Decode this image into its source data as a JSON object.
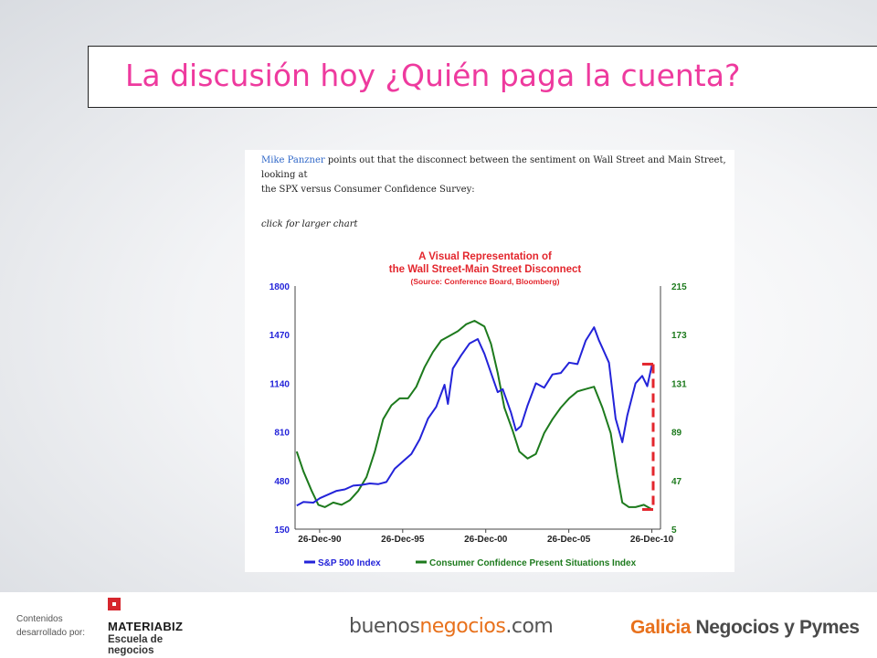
{
  "slide": {
    "title": "La discusión hoy ¿Quién paga la cuenta?"
  },
  "article": {
    "author": "Mike Panzner",
    "intro_rest_1": " points out that the disconnect between the sentiment on Wall Street and Main Street, looking at",
    "intro_line_2": "the SPX versus Consumer Confidence Survey:",
    "link_text": "click for larger chart"
  },
  "chart_data": {
    "type": "line",
    "title_line_1": "A Visual Representation of",
    "title_line_2": "the Wall Street-Main Street Disconnect",
    "subtitle": "(Source: Conference Board, Bloomberg)",
    "x_ticks": [
      "26-Dec-90",
      "26-Dec-95",
      "26-Dec-00",
      "26-Dec-05",
      "26-Dec-10"
    ],
    "x_tick_years": [
      1990.98,
      1995.98,
      2000.98,
      2005.98,
      2010.98
    ],
    "xlim": [
      1989.5,
      2011.5
    ],
    "y_left_ticks": [
      "1800",
      "1470",
      "1140",
      "810",
      "480",
      "150"
    ],
    "ylim_left": [
      150,
      1800
    ],
    "y_right_ticks": [
      "215",
      "173",
      "131",
      "89",
      "47",
      "5"
    ],
    "ylim_right": [
      5,
      215
    ],
    "grid": false,
    "legend_position": "bottom",
    "series": [
      {
        "name": "S&P 500 Index",
        "axis": "left",
        "color": "#2323d9",
        "x": [
          1989.6,
          1990.0,
          1990.6,
          1991.0,
          1991.5,
          1992.0,
          1992.5,
          1993.0,
          1993.5,
          1994.0,
          1994.5,
          1995.0,
          1995.5,
          1996.0,
          1996.5,
          1997.0,
          1997.5,
          1998.0,
          1998.5,
          1998.7,
          1999.0,
          1999.5,
          2000.0,
          2000.5,
          2000.9,
          2001.3,
          2001.7,
          2002.0,
          2002.5,
          2002.8,
          2003.1,
          2003.5,
          2004.0,
          2004.5,
          2005.0,
          2005.5,
          2006.0,
          2006.5,
          2007.0,
          2007.5,
          2007.8,
          2008.0,
          2008.4,
          2008.8,
          2009.2,
          2009.5,
          2010.0,
          2010.4,
          2010.7,
          2011.0
        ],
        "y": [
          310,
          335,
          330,
          360,
          385,
          410,
          420,
          445,
          450,
          460,
          455,
          470,
          560,
          610,
          660,
          760,
          900,
          980,
          1130,
          1000,
          1240,
          1330,
          1410,
          1440,
          1340,
          1210,
          1080,
          1100,
          940,
          820,
          850,
          990,
          1140,
          1110,
          1200,
          1210,
          1280,
          1270,
          1430,
          1520,
          1430,
          1380,
          1280,
          900,
          740,
          920,
          1140,
          1190,
          1120,
          1270
        ]
      },
      {
        "name": "Consumer Confidence Present Situations Index",
        "axis": "right",
        "color": "#1d7a1d",
        "x": [
          1989.6,
          1990.0,
          1990.5,
          1990.9,
          1991.3,
          1991.8,
          1992.3,
          1992.8,
          1993.3,
          1993.8,
          1994.3,
          1994.8,
          1995.3,
          1995.8,
          1996.3,
          1996.8,
          1997.3,
          1997.8,
          1998.3,
          1998.8,
          1999.3,
          1999.8,
          2000.3,
          2000.9,
          2001.3,
          2001.7,
          2002.1,
          2002.6,
          2003.0,
          2003.5,
          2004.0,
          2004.5,
          2005.0,
          2005.5,
          2006.0,
          2006.5,
          2007.0,
          2007.5,
          2008.0,
          2008.5,
          2008.9,
          2009.2,
          2009.6,
          2010.0,
          2010.5,
          2011.0
        ],
        "y": [
          72,
          55,
          38,
          26,
          24,
          28,
          26,
          30,
          38,
          50,
          72,
          100,
          112,
          118,
          118,
          128,
          145,
          158,
          168,
          172,
          176,
          182,
          185,
          180,
          165,
          140,
          110,
          90,
          72,
          66,
          70,
          88,
          100,
          110,
          118,
          124,
          126,
          128,
          110,
          88,
          52,
          28,
          24,
          24,
          26,
          22
        ]
      }
    ],
    "gap_marker_color": "#e3262d"
  },
  "footer": {
    "credit_line_1": "Contenidos",
    "credit_line_2": "desarrollado por:",
    "materiabiz_name": "MATERIABIZ",
    "materiabiz_sub": "Escuela de negocios",
    "bn_part_1": "buenos",
    "bn_part_2": "negocios",
    "bn_part_3": ".com",
    "galicia_accent": "Galicia",
    "galicia_rest": " Negocios y Pymes"
  }
}
